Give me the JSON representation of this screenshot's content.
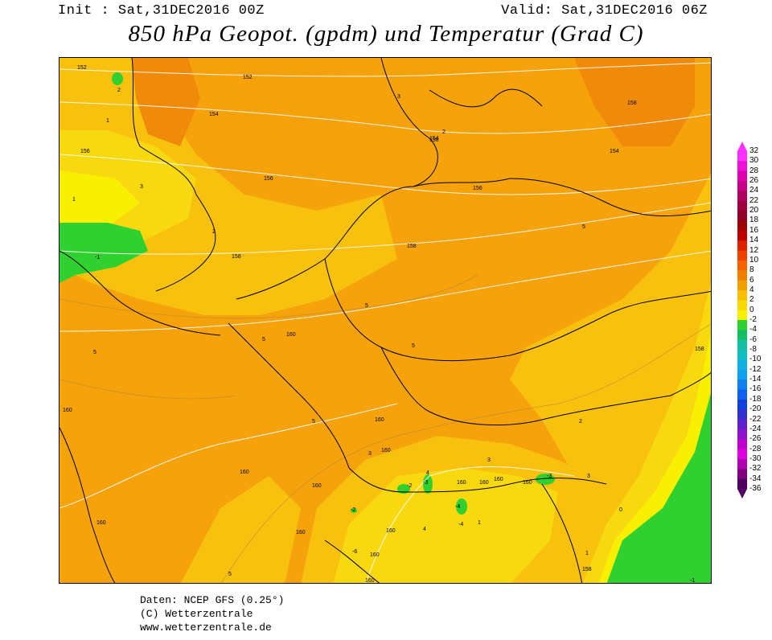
{
  "header": {
    "init": "Init : Sat,31DEC2016 00Z",
    "valid": "Valid: Sat,31DEC2016 06Z",
    "title": "850 hPa Geopot. (gpdm) und Temperatur (Grad C)"
  },
  "scale": {
    "ticks": [
      "32",
      "30",
      "28",
      "26",
      "24",
      "22",
      "20",
      "18",
      "16",
      "14",
      "12",
      "10",
      "8",
      "6",
      "4",
      "2",
      "0",
      "-2",
      "-4",
      "-6",
      "-8",
      "-10",
      "-12",
      "-14",
      "-16",
      "-18",
      "-20",
      "-22",
      "-24",
      "-26",
      "-28",
      "-30",
      "-32",
      "-34",
      "-36"
    ],
    "colors": [
      "#ff30ff",
      "#f010d8",
      "#e000b0",
      "#c80088",
      "#b00060",
      "#a00040",
      "#900028",
      "#a00000",
      "#c00000",
      "#e02000",
      "#f04000",
      "#f86000",
      "#f08000",
      "#f0a000",
      "#f8c000",
      "#f8d800",
      "#f8f000",
      "#30d030",
      "#10c060",
      "#10c0a0",
      "#10c0c0",
      "#10b0e0",
      "#10a0f0",
      "#1080f0",
      "#1060f0",
      "#1040e0",
      "#3030d0",
      "#6020d0",
      "#9010d0",
      "#c000d0",
      "#e000e0",
      "#b000b0",
      "#800080",
      "#500060"
    ]
  },
  "map": {
    "colors": {
      "t6": "#f5a20b",
      "t4": "#f7c10d",
      "t2": "#f8d80e",
      "t0": "#f8f000",
      "tm2": "#30d030",
      "tm4": "#10c060",
      "warm8": "#f08a0a"
    },
    "geopot_labels": [
      "152",
      "152",
      "154",
      "154",
      "154",
      "156",
      "156",
      "156",
      "158",
      "158",
      "158",
      "160",
      "160",
      "160",
      "160",
      "160",
      "160",
      "160",
      "160",
      "160",
      "160",
      "160",
      "160",
      "160",
      "160",
      "160",
      "158",
      "158",
      "158"
    ],
    "temp_labels": [
      "-1",
      "1",
      "2",
      "3",
      "2",
      "1",
      "3",
      "2",
      "5",
      "5",
      "5",
      "5",
      "5",
      "3",
      "5",
      "5",
      "4",
      "3",
      "4",
      "-2",
      "-4",
      "-3",
      "-3",
      "1",
      "-4",
      "-2",
      "2",
      "3",
      "0",
      "-1",
      "-6",
      "1"
    ]
  },
  "footer": {
    "line1": "Daten: NCEP GFS (0.25°)",
    "line2": "(C) Wetterzentrale",
    "line3": "www.wetterzentrale.de"
  }
}
